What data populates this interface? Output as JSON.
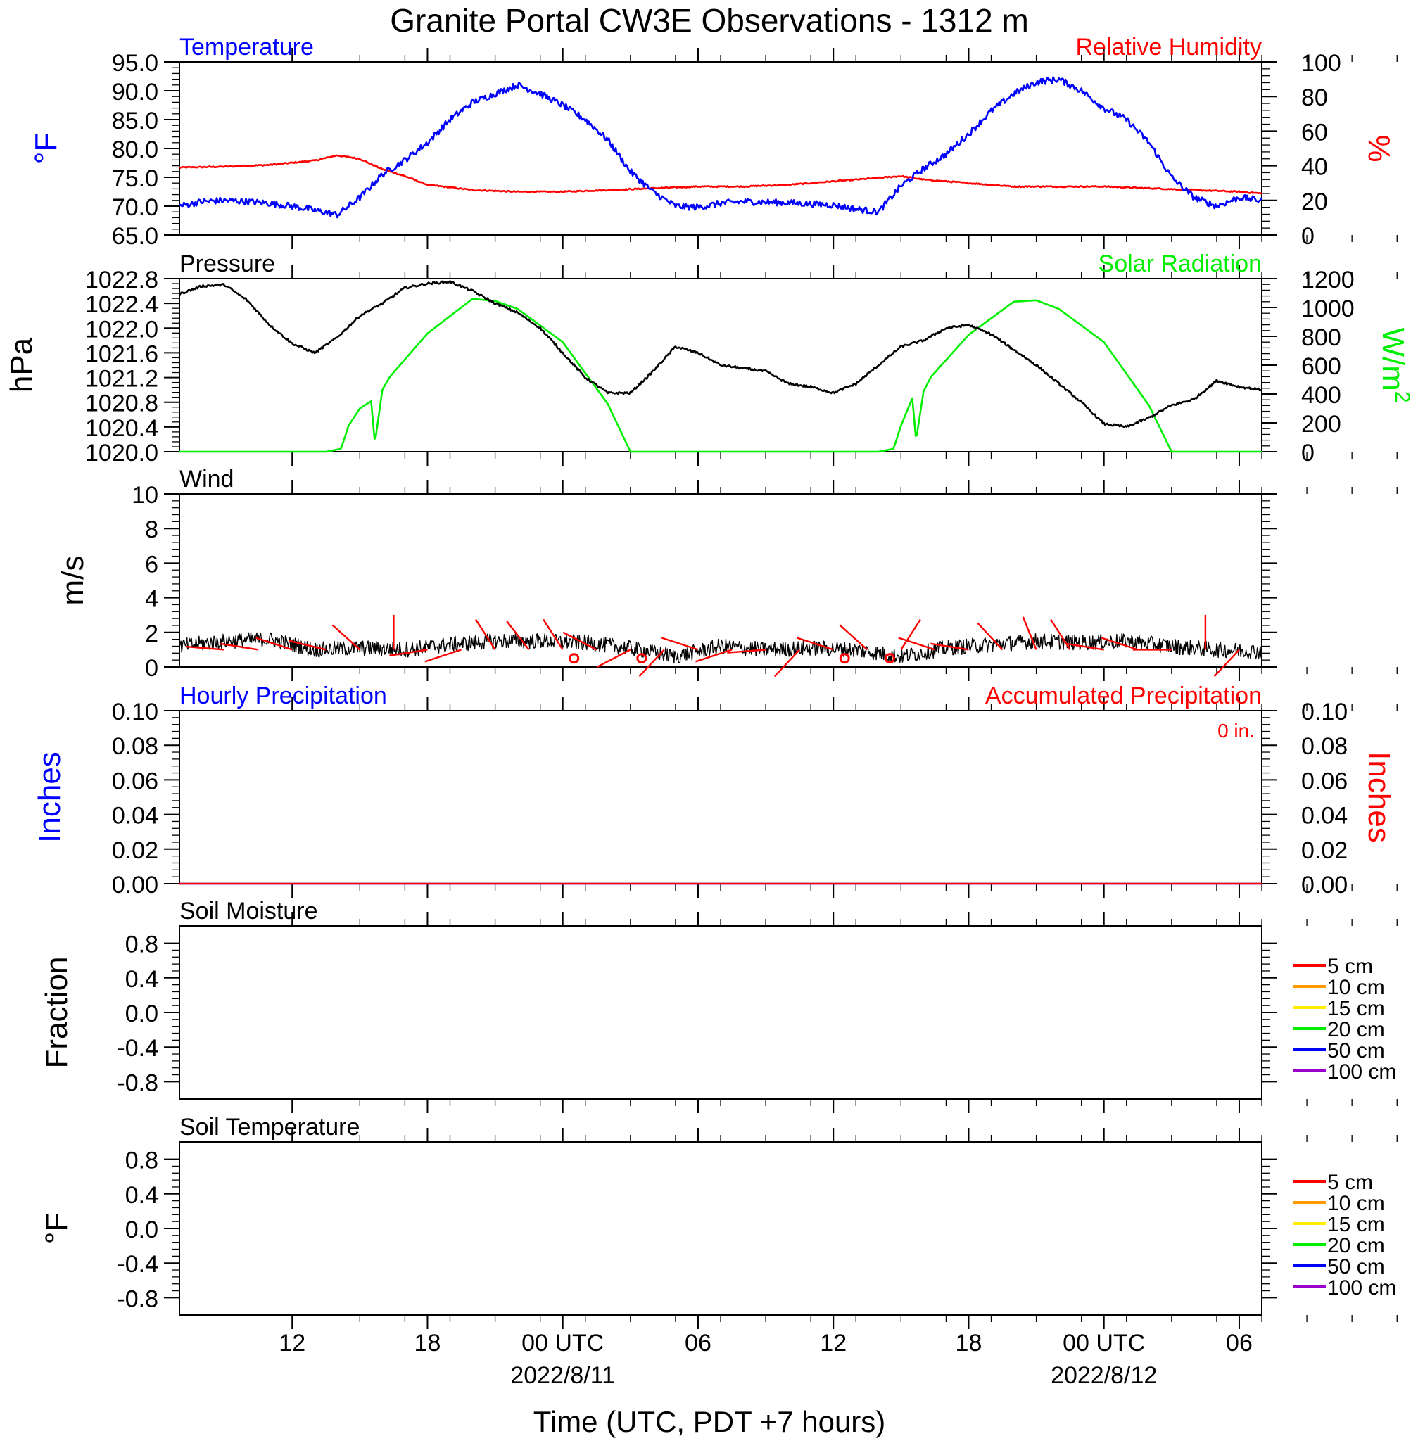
{
  "title": "Granite Portal CW3E Observations - 1312 m",
  "xlabel": "Time (UTC, PDT +7 hours)",
  "x_ticks": [
    {
      "label": "12",
      "date": ""
    },
    {
      "label": "18",
      "date": ""
    },
    {
      "label": "00 UTC",
      "date": "2022/8/11"
    },
    {
      "label": "06",
      "date": ""
    },
    {
      "label": "12",
      "date": ""
    },
    {
      "label": "18",
      "date": ""
    },
    {
      "label": "00 UTC",
      "date": "2022/8/12"
    },
    {
      "label": "06",
      "date": ""
    }
  ],
  "colors": {
    "temperature": "#0000ff",
    "humidity": "#ff0000",
    "pressure": "#000000",
    "solar": "#00ee00",
    "wind": "#000000",
    "barb": "#ff0000",
    "hourly": "#0000ff",
    "accum": "#ff0000"
  },
  "chart_data": [
    {
      "type": "line",
      "title": "",
      "x_range_hours_utc": [
        "2022-08-10T07:00",
        "2022-08-12T07:00"
      ],
      "x_tick_hours": [
        "2022-08-10T12:00",
        "2022-08-10T18:00",
        "2022-08-11T00:00",
        "2022-08-11T06:00",
        "2022-08-11T12:00",
        "2022-08-11T18:00",
        "2022-08-12T00:00",
        "2022-08-12T06:00"
      ],
      "left_title": "Temperature",
      "right_title": "Relative Humidity",
      "ylabel": "°F",
      "ylabel_right": "%",
      "ylim": [
        65.0,
        95.0
      ],
      "ylim_right": [
        0,
        100
      ],
      "yticks": [
        "65.0",
        "70.0",
        "75.0",
        "80.0",
        "85.0",
        "90.0",
        "95.0"
      ],
      "yticks_right": [
        "0",
        "20",
        "40",
        "60",
        "80",
        "100"
      ],
      "series": [
        {
          "name": "Temperature",
          "axis": "left",
          "x": [
            "2022-08-10T07:00",
            "2022-08-10T08:00",
            "2022-08-10T09:00",
            "2022-08-10T10:00",
            "2022-08-10T11:00",
            "2022-08-10T12:00",
            "2022-08-10T13:00",
            "2022-08-10T14:00",
            "2022-08-10T15:00",
            "2022-08-10T16:00",
            "2022-08-10T17:00",
            "2022-08-10T18:00",
            "2022-08-10T19:00",
            "2022-08-10T20:00",
            "2022-08-10T21:00",
            "2022-08-10T22:00",
            "2022-08-10T23:00",
            "2022-08-11T00:00",
            "2022-08-11T01:00",
            "2022-08-11T02:00",
            "2022-08-11T03:00",
            "2022-08-11T04:00",
            "2022-08-11T05:00",
            "2022-08-11T06:00",
            "2022-08-11T07:00",
            "2022-08-11T08:00",
            "2022-08-11T09:00",
            "2022-08-11T10:00",
            "2022-08-11T11:00",
            "2022-08-11T12:00",
            "2022-08-11T13:00",
            "2022-08-11T14:00",
            "2022-08-11T15:00",
            "2022-08-11T16:00",
            "2022-08-11T17:00",
            "2022-08-11T18:00",
            "2022-08-11T19:00",
            "2022-08-11T20:00",
            "2022-08-11T21:00",
            "2022-08-11T22:00",
            "2022-08-11T23:00",
            "2022-08-12T00:00",
            "2022-08-12T01:00",
            "2022-08-12T02:00",
            "2022-08-12T03:00",
            "2022-08-12T04:00",
            "2022-08-12T05:00",
            "2022-08-12T06:00",
            "2022-08-12T07:00"
          ],
          "values": [
            70.0,
            70.8,
            71.0,
            70.8,
            70.5,
            70.0,
            69.3,
            68.5,
            71.5,
            75.5,
            78.0,
            81.0,
            85.0,
            88.0,
            89.5,
            91.0,
            89.5,
            87.5,
            85.0,
            81.5,
            76.0,
            72.5,
            70.0,
            69.8,
            70.5,
            70.8,
            70.7,
            70.6,
            70.4,
            70.2,
            69.5,
            69.0,
            73.5,
            76.5,
            79.0,
            82.5,
            86.5,
            89.5,
            91.5,
            92.0,
            90.0,
            87.0,
            85.0,
            81.0,
            75.0,
            71.5,
            70.0,
            71.5,
            71.0
          ]
        },
        {
          "name": "Relative Humidity",
          "axis": "right",
          "x": [
            "2022-08-10T07:00",
            "2022-08-10T09:00",
            "2022-08-10T11:00",
            "2022-08-10T13:00",
            "2022-08-10T14:00",
            "2022-08-10T15:00",
            "2022-08-10T16:00",
            "2022-08-10T17:00",
            "2022-08-10T18:00",
            "2022-08-10T20:00",
            "2022-08-10T22:00",
            "2022-08-11T00:00",
            "2022-08-11T02:00",
            "2022-08-11T04:00",
            "2022-08-11T06:00",
            "2022-08-11T08:00",
            "2022-08-11T10:00",
            "2022-08-11T12:00",
            "2022-08-11T14:00",
            "2022-08-11T15:00",
            "2022-08-11T16:00",
            "2022-08-11T18:00",
            "2022-08-11T20:00",
            "2022-08-11T22:00",
            "2022-08-12T00:00",
            "2022-08-12T02:00",
            "2022-08-12T04:00",
            "2022-08-12T06:00",
            "2022-08-12T07:00"
          ],
          "values": [
            39,
            39.5,
            40.5,
            43,
            46,
            44,
            38,
            34,
            29,
            26,
            25,
            25,
            26,
            27,
            28,
            28,
            29,
            31,
            33,
            34,
            32,
            30,
            28,
            28,
            28,
            27,
            26,
            25,
            24
          ]
        }
      ]
    },
    {
      "type": "line",
      "title": "",
      "left_title": "Pressure",
      "right_title": "Solar Radiation",
      "ylabel": "hPa",
      "ylabel_right": "W/m",
      "ylabel_right_sup": "2",
      "ylim": [
        1020.0,
        1022.8
      ],
      "ylim_right": [
        0,
        1200
      ],
      "yticks": [
        "1020.0",
        "1020.4",
        "1020.8",
        "1021.2",
        "1021.6",
        "1022.0",
        "1022.4",
        "1022.8"
      ],
      "yticks_right": [
        "0",
        "200",
        "400",
        "600",
        "800",
        "1000",
        "1200"
      ],
      "series": [
        {
          "name": "Pressure",
          "axis": "left",
          "x": [
            "2022-08-10T07:00",
            "2022-08-10T08:00",
            "2022-08-10T09:00",
            "2022-08-10T10:00",
            "2022-08-10T11:00",
            "2022-08-10T12:00",
            "2022-08-10T13:00",
            "2022-08-10T14:00",
            "2022-08-10T15:00",
            "2022-08-10T16:00",
            "2022-08-10T17:00",
            "2022-08-10T18:00",
            "2022-08-10T19:00",
            "2022-08-10T20:00",
            "2022-08-10T21:00",
            "2022-08-10T22:00",
            "2022-08-10T23:00",
            "2022-08-11T00:00",
            "2022-08-11T01:00",
            "2022-08-11T02:00",
            "2022-08-11T03:00",
            "2022-08-11T04:00",
            "2022-08-11T05:00",
            "2022-08-11T06:00",
            "2022-08-11T07:00",
            "2022-08-11T08:00",
            "2022-08-11T09:00",
            "2022-08-11T10:00",
            "2022-08-11T11:00",
            "2022-08-11T12:00",
            "2022-08-11T13:00",
            "2022-08-11T14:00",
            "2022-08-11T15:00",
            "2022-08-11T16:00",
            "2022-08-11T17:00",
            "2022-08-11T18:00",
            "2022-08-11T19:00",
            "2022-08-11T20:00",
            "2022-08-11T21:00",
            "2022-08-11T22:00",
            "2022-08-11T23:00",
            "2022-08-12T00:00",
            "2022-08-12T01:00",
            "2022-08-12T02:00",
            "2022-08-12T03:00",
            "2022-08-12T04:00",
            "2022-08-12T05:00",
            "2022-08-12T06:00",
            "2022-08-12T07:00"
          ],
          "values": [
            1022.55,
            1022.68,
            1022.7,
            1022.45,
            1022.05,
            1021.75,
            1021.6,
            1021.85,
            1022.2,
            1022.4,
            1022.65,
            1022.72,
            1022.75,
            1022.6,
            1022.4,
            1022.25,
            1022.0,
            1021.6,
            1021.2,
            1020.95,
            1020.95,
            1021.3,
            1021.7,
            1021.6,
            1021.4,
            1021.35,
            1021.3,
            1021.1,
            1021.05,
            1020.95,
            1021.1,
            1021.4,
            1021.7,
            1021.8,
            1022.0,
            1022.05,
            1021.9,
            1021.65,
            1021.4,
            1021.1,
            1020.8,
            1020.45,
            1020.4,
            1020.55,
            1020.75,
            1020.85,
            1021.15,
            1021.05,
            1021.0
          ]
        },
        {
          "name": "Solar Radiation",
          "axis": "right",
          "x": [
            "2022-08-10T07:00",
            "2022-08-10T13:30",
            "2022-08-10T14:10",
            "2022-08-10T14:30",
            "2022-08-10T15:00",
            "2022-08-10T15:30",
            "2022-08-10T15:40",
            "2022-08-10T16:00",
            "2022-08-10T16:20",
            "2022-08-10T18:00",
            "2022-08-10T20:00",
            "2022-08-10T21:00",
            "2022-08-10T22:00",
            "2022-08-11T00:00",
            "2022-08-11T02:00",
            "2022-08-11T03:00",
            "2022-08-11T14:00",
            "2022-08-11T14:40",
            "2022-08-11T15:00",
            "2022-08-11T15:30",
            "2022-08-11T15:40",
            "2022-08-11T16:00",
            "2022-08-11T16:20",
            "2022-08-11T18:00",
            "2022-08-11T20:00",
            "2022-08-11T21:00",
            "2022-08-11T22:00",
            "2022-08-12T00:00",
            "2022-08-12T02:00",
            "2022-08-12T03:00",
            "2022-08-12T07:00"
          ],
          "values": [
            0,
            0,
            20,
            180,
            300,
            350,
            60,
            430,
            520,
            820,
            1060,
            1045,
            990,
            760,
            330,
            0,
            0,
            20,
            180,
            370,
            80,
            420,
            520,
            810,
            1040,
            1050,
            990,
            760,
            320,
            0,
            0
          ]
        }
      ]
    },
    {
      "type": "line",
      "title": "",
      "left_title": "Wind",
      "ylabel": "m/s",
      "ylim": [
        0,
        10
      ],
      "yticks": [
        "0",
        "2",
        "4",
        "6",
        "8",
        "10"
      ],
      "series": [
        {
          "name": "Wind",
          "axis": "left",
          "x": [
            "2022-08-10T07:00",
            "2022-08-10T09:00",
            "2022-08-10T11:00",
            "2022-08-10T13:00",
            "2022-08-10T15:00",
            "2022-08-10T17:00",
            "2022-08-10T19:00",
            "2022-08-10T21:00",
            "2022-08-10T23:00",
            "2022-08-11T01:00",
            "2022-08-11T03:00",
            "2022-08-11T05:00",
            "2022-08-11T07:00",
            "2022-08-11T09:00",
            "2022-08-11T11:00",
            "2022-08-11T13:00",
            "2022-08-11T15:00",
            "2022-08-11T17:00",
            "2022-08-11T19:00",
            "2022-08-11T21:00",
            "2022-08-11T23:00",
            "2022-08-12T01:00",
            "2022-08-12T03:00",
            "2022-08-12T05:00",
            "2022-08-12T07:00"
          ],
          "values": [
            1.2,
            1.5,
            1.6,
            1.0,
            1.1,
            1.0,
            1.3,
            1.5,
            1.5,
            1.4,
            1.1,
            0.6,
            1.2,
            1.0,
            1.1,
            1.0,
            0.6,
            1.1,
            1.3,
            1.5,
            1.4,
            1.5,
            1.2,
            1.0,
            0.9
          ]
        }
      ],
      "barb_positions_hours_utc": [
        "2022-08-10T09:00",
        "2022-08-10T10:30",
        "2022-08-10T12:00",
        "2022-08-10T13:30",
        "2022-08-10T15:00",
        "2022-08-10T16:30",
        "2022-08-10T18:00",
        "2022-08-10T19:30",
        "2022-08-10T21:00",
        "2022-08-10T22:30",
        "2022-08-11T00:00",
        "2022-08-11T01:30",
        "2022-08-11T03:00",
        "2022-08-11T04:30",
        "2022-08-11T06:00",
        "2022-08-11T07:30",
        "2022-08-11T09:00",
        "2022-08-11T10:30",
        "2022-08-11T12:00",
        "2022-08-11T13:30",
        "2022-08-11T15:00",
        "2022-08-11T16:30",
        "2022-08-11T18:00",
        "2022-08-11T19:30",
        "2022-08-11T21:00",
        "2022-08-11T22:30",
        "2022-08-12T00:00",
        "2022-08-12T01:30",
        "2022-08-12T03:00",
        "2022-08-12T04:30",
        "2022-08-12T06:00"
      ],
      "calm_positions_hours_utc": [
        "2022-08-11T00:30",
        "2022-08-11T03:30",
        "2022-08-11T12:30",
        "2022-08-11T14:30"
      ]
    },
    {
      "type": "line",
      "title": "",
      "left_title": "Hourly Precipitation",
      "right_title": "Accumulated Precipitation",
      "accum_total": "0 in.",
      "ylabel": "Inches",
      "ylabel_right": "Inches",
      "ylim": [
        0.0,
        0.1
      ],
      "ylim_right": [
        0.0,
        0.1
      ],
      "yticks": [
        "0.00",
        "0.02",
        "0.04",
        "0.06",
        "0.08",
        "0.10"
      ],
      "yticks_right": [
        "0.00",
        "0.02",
        "0.04",
        "0.06",
        "0.08",
        "0.10"
      ],
      "series": [
        {
          "name": "Hourly Precipitation",
          "axis": "left",
          "x": [
            "2022-08-10T07:00",
            "2022-08-12T07:00"
          ],
          "values": [
            0.0,
            0.0
          ]
        },
        {
          "name": "Accumulated Precipitation",
          "axis": "right",
          "x": [
            "2022-08-10T07:00",
            "2022-08-12T07:00"
          ],
          "values": [
            0.0,
            0.0
          ]
        }
      ]
    },
    {
      "type": "line",
      "title": "",
      "left_title": "Soil Moisture",
      "ylabel": "Fraction",
      "ylim": [
        -1.0,
        1.0
      ],
      "yticks": [
        "-0.8",
        "-0.4",
        "0.0",
        "0.4",
        "0.8"
      ],
      "legend": [
        {
          "label": "5 cm",
          "color": "#ff0000"
        },
        {
          "label": "10 cm",
          "color": "#ff9900"
        },
        {
          "label": "15 cm",
          "color": "#ffee00"
        },
        {
          "label": "20 cm",
          "color": "#00ee00"
        },
        {
          "label": "50 cm",
          "color": "#0000ff"
        },
        {
          "label": "100 cm",
          "color": "#9900cc"
        }
      ],
      "series": []
    },
    {
      "type": "line",
      "title": "",
      "left_title": "Soil Temperature",
      "ylabel": "°F",
      "ylim": [
        -1.0,
        1.0
      ],
      "yticks": [
        "-0.8",
        "-0.4",
        "0.0",
        "0.4",
        "0.8"
      ],
      "legend": [
        {
          "label": "5 cm",
          "color": "#ff0000"
        },
        {
          "label": "10 cm",
          "color": "#ff9900"
        },
        {
          "label": "15 cm",
          "color": "#ffee00"
        },
        {
          "label": "20 cm",
          "color": "#00ee00"
        },
        {
          "label": "50 cm",
          "color": "#0000ff"
        },
        {
          "label": "100 cm",
          "color": "#9900cc"
        }
      ],
      "series": []
    }
  ]
}
